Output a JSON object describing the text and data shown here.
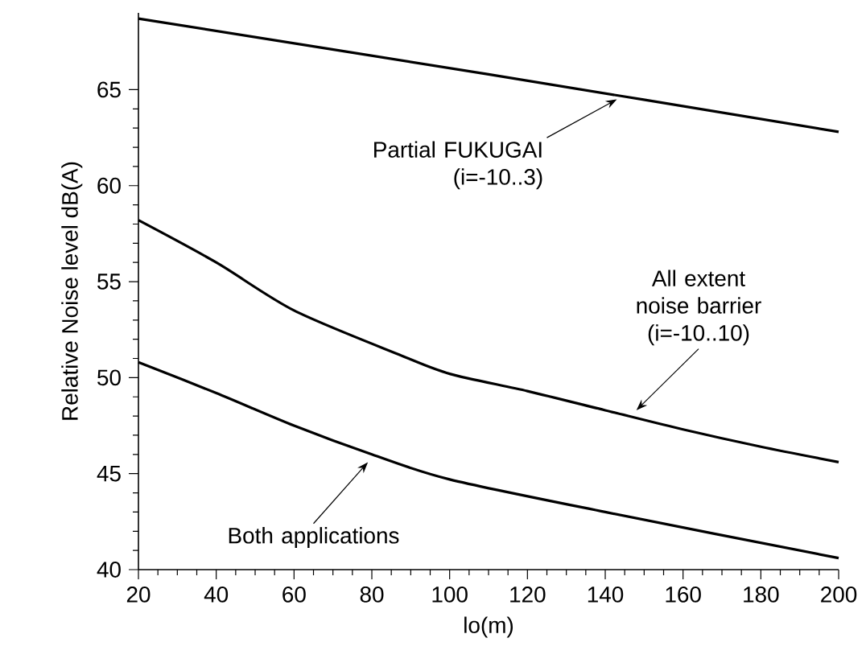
{
  "chart_data": {
    "type": "line",
    "xlabel": "lo(m)",
    "ylabel": "Relative Noise level dB(A)",
    "xlim": [
      20,
      200
    ],
    "ylim": [
      40,
      69
    ],
    "xticks": [
      20,
      40,
      60,
      80,
      100,
      120,
      140,
      160,
      180,
      200
    ],
    "yticks": [
      40,
      45,
      50,
      55,
      60,
      65
    ],
    "grid": false,
    "marker": "none",
    "line_style": "solid",
    "series": [
      {
        "x": [
          20,
          110,
          200
        ],
        "values": [
          68.7,
          65.8,
          62.8
        ],
        "color": "#000000"
      },
      {
        "x": [
          20,
          40,
          60,
          87,
          100,
          120,
          140,
          160,
          180,
          200
        ],
        "values": [
          58.2,
          56.0,
          53.5,
          51.2,
          50.2,
          49.3,
          48.3,
          47.3,
          46.4,
          45.6
        ],
        "color": "#000000"
      },
      {
        "x": [
          20,
          40,
          60,
          80,
          100,
          140,
          200
        ],
        "values": [
          50.8,
          49.2,
          47.5,
          46.0,
          44.7,
          43.0,
          40.6
        ],
        "color": "#000000"
      }
    ],
    "annotations": [
      {
        "text": "Partial FUKUGAI (i=-10..3)",
        "x": 143,
        "y": 64.5
      },
      {
        "text": "All extent noise barrier (i=-10..10)",
        "x": 148,
        "y": 48.3
      },
      {
        "text": "Both applications",
        "x": 79,
        "y": 45.6
      }
    ]
  }
}
